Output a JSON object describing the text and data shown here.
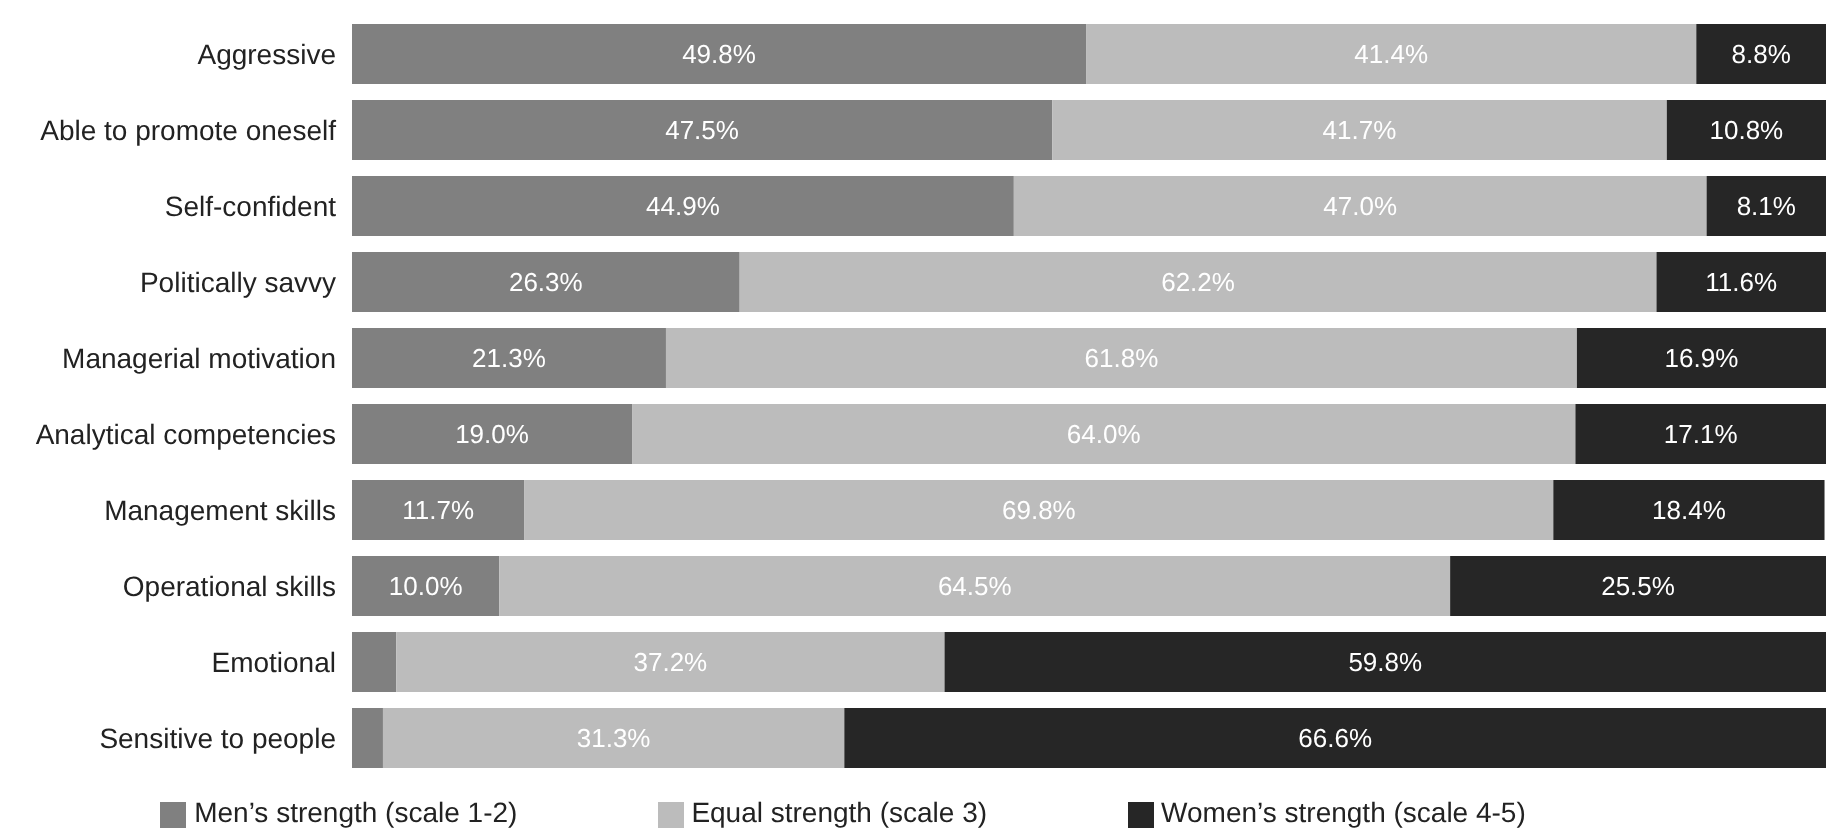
{
  "chart_data": {
    "type": "bar",
    "orientation": "horizontal",
    "stacked": true,
    "categories": [
      "Aggressive",
      "Able to promote oneself",
      "Self-confident",
      "Politically savvy",
      "Managerial motivation",
      "Analytical competencies",
      "Management skills",
      "Operational skills",
      "Emotional",
      "Sensitive to people"
    ],
    "xlim": [
      0,
      100
    ],
    "tick_labels": "y",
    "legend": "bottom",
    "grid": false,
    "series": [
      {
        "name": "Men’s strength (scale 1-2)",
        "color": "#808080",
        "values": [
          49.8,
          47.5,
          44.9,
          26.3,
          21.3,
          19.0,
          11.7,
          10.0,
          3.0,
          2.1
        ],
        "value_labels": [
          "49.8%",
          "47.5%",
          "44.9%",
          "26.3%",
          "21.3%",
          "19.0%",
          "11.7%",
          "10.0%",
          null,
          null
        ]
      },
      {
        "name": "Equal strength (scale 3)",
        "color": "#bcbcbc",
        "values": [
          41.4,
          41.7,
          47.0,
          62.2,
          61.8,
          64.0,
          69.8,
          64.5,
          37.2,
          31.3
        ],
        "value_labels": [
          "41.4%",
          "41.7%",
          "47.0%",
          "62.2%",
          "61.8%",
          "64.0%",
          "69.8%",
          "64.5%",
          "37.2%",
          "31.3%"
        ]
      },
      {
        "name": "Women’s strength (scale 4-5)",
        "color": "#262626",
        "values": [
          8.8,
          10.8,
          8.1,
          11.6,
          16.9,
          17.1,
          18.4,
          25.5,
          59.8,
          66.6
        ],
        "value_labels": [
          "8.8%",
          "10.8%",
          "8.1%",
          "11.6%",
          "16.9%",
          "17.1%",
          "18.4%",
          "25.5%",
          "59.8%",
          "66.6%"
        ]
      }
    ]
  }
}
